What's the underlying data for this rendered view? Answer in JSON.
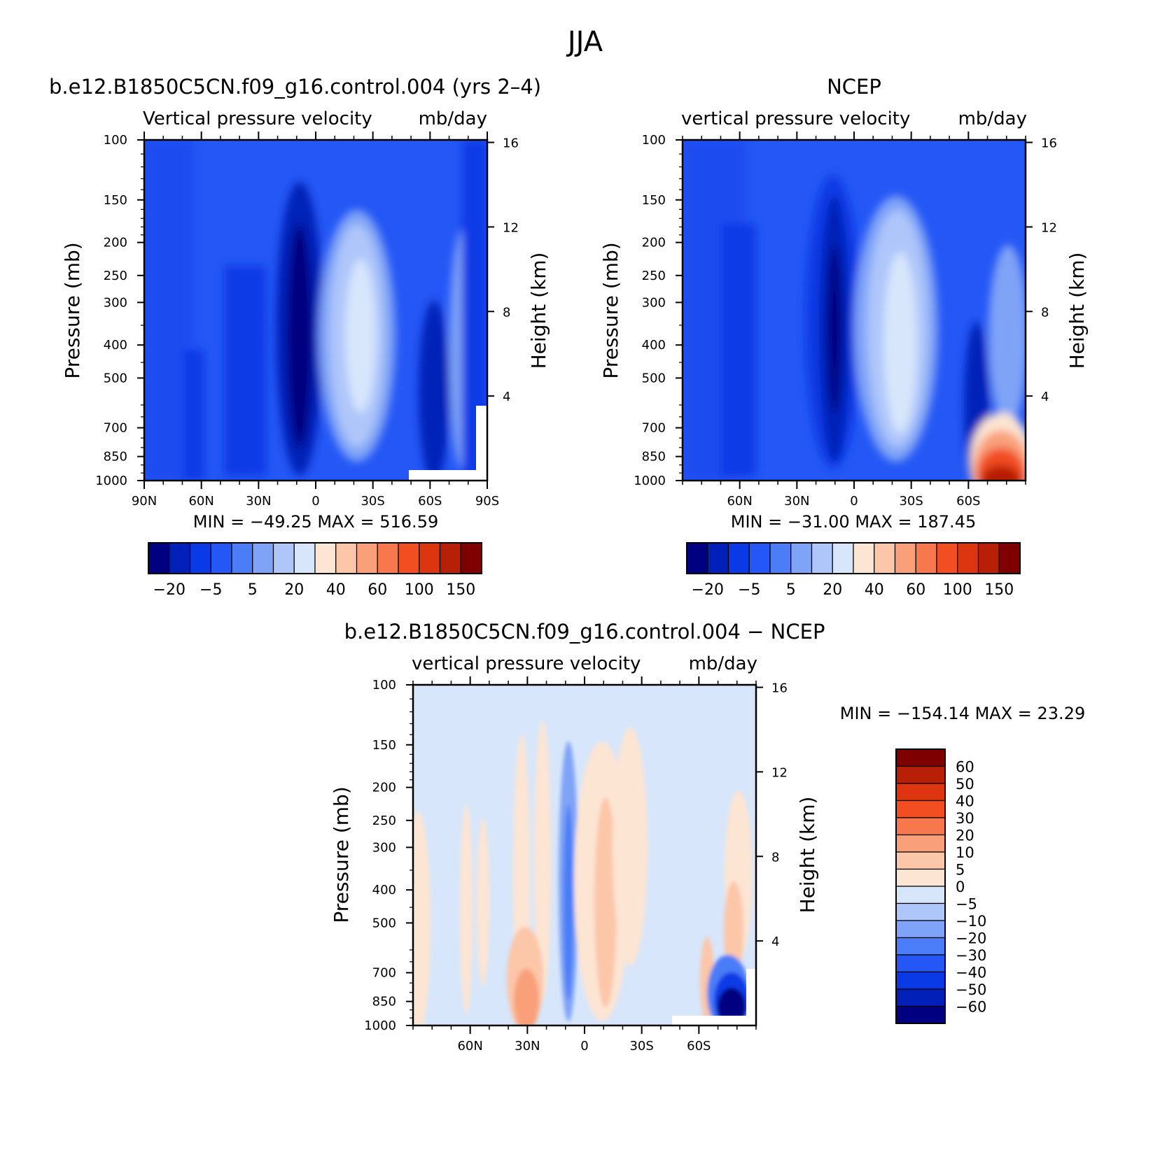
{
  "figure_title": "JJA",
  "chart_data": [
    {
      "type": "heatmap",
      "title": "b.e12.B1850C5CN.f09_g16.control.004 (yrs 2–4)",
      "subtitle_left": "Vertical pressure velocity",
      "subtitle_right": "mb/day",
      "ylabel": "Pressure (mb)",
      "ylabel_right": "Height (km)",
      "x_ticks": [
        "90N",
        "60N",
        "30N",
        "0",
        "30S",
        "60S",
        "90S"
      ],
      "y_ticks": [
        "100",
        "150",
        "200",
        "250",
        "300",
        "400",
        "500",
        "700",
        "850",
        "1000"
      ],
      "y_ticks_right": [
        "16",
        "12",
        "8",
        "4"
      ],
      "stats": "MIN = −49.25 MAX = 516.59",
      "colorbar_labels": [
        "−20",
        "−5",
        "5",
        "20",
        "40",
        "60",
        "100",
        "150"
      ],
      "min": -49.25,
      "max": 516.59
    },
    {
      "type": "heatmap",
      "title": "NCEP",
      "subtitle_left": "vertical pressure velocity",
      "subtitle_right": "mb/day",
      "ylabel": "Pressure (mb)",
      "ylabel_right": "Height (km)",
      "x_ticks": [
        "60N",
        "30N",
        "0",
        "30S",
        "60S"
      ],
      "y_ticks": [
        "100",
        "150",
        "200",
        "250",
        "300",
        "400",
        "500",
        "700",
        "850",
        "1000"
      ],
      "y_ticks_right": [
        "16",
        "12",
        "8",
        "4"
      ],
      "stats": "MIN = −31.00 MAX = 187.45",
      "colorbar_labels": [
        "−20",
        "−5",
        "5",
        "20",
        "40",
        "60",
        "100",
        "150"
      ],
      "min": -31.0,
      "max": 187.45
    },
    {
      "type": "heatmap",
      "title": "b.e12.B1850C5CN.f09_g16.control.004 − NCEP",
      "subtitle_left": "vertical pressure velocity",
      "subtitle_right": "mb/day",
      "ylabel": "Pressure (mb)",
      "ylabel_right": "Height (km)",
      "x_ticks": [
        "60N",
        "30N",
        "0",
        "30S",
        "60S"
      ],
      "y_ticks": [
        "100",
        "150",
        "200",
        "250",
        "300",
        "400",
        "500",
        "700",
        "850",
        "1000"
      ],
      "y_ticks_right": [
        "16",
        "12",
        "8",
        "4"
      ],
      "stats": "MIN = −154.14 MAX = 23.29",
      "colorbar_labels": [
        "60",
        "50",
        "40",
        "30",
        "20",
        "10",
        "5",
        "0",
        "−5",
        "−10",
        "−20",
        "−30",
        "−40",
        "−50",
        "−60"
      ],
      "min": -154.14,
      "max": 23.29
    }
  ],
  "colors": {
    "abs_scale": [
      "#000080",
      "#0020b8",
      "#0a3ae6",
      "#2457f5",
      "#4a7df7",
      "#7fa3f7",
      "#aec6fa",
      "#d7e6fb",
      "#fde5d3",
      "#fcc6a8",
      "#f9a07a",
      "#f7784c",
      "#f24e22",
      "#dc3510",
      "#b71f06",
      "#7e0000"
    ],
    "diff_scale": [
      "#7e0000",
      "#b71f06",
      "#dc3510",
      "#f24e22",
      "#f7784c",
      "#f9a07a",
      "#fcc6a8",
      "#fde5d3",
      "#d7e6fb",
      "#aec6fa",
      "#7fa3f7",
      "#4a7df7",
      "#2457f5",
      "#0a3ae6",
      "#0020b8",
      "#000080"
    ]
  }
}
